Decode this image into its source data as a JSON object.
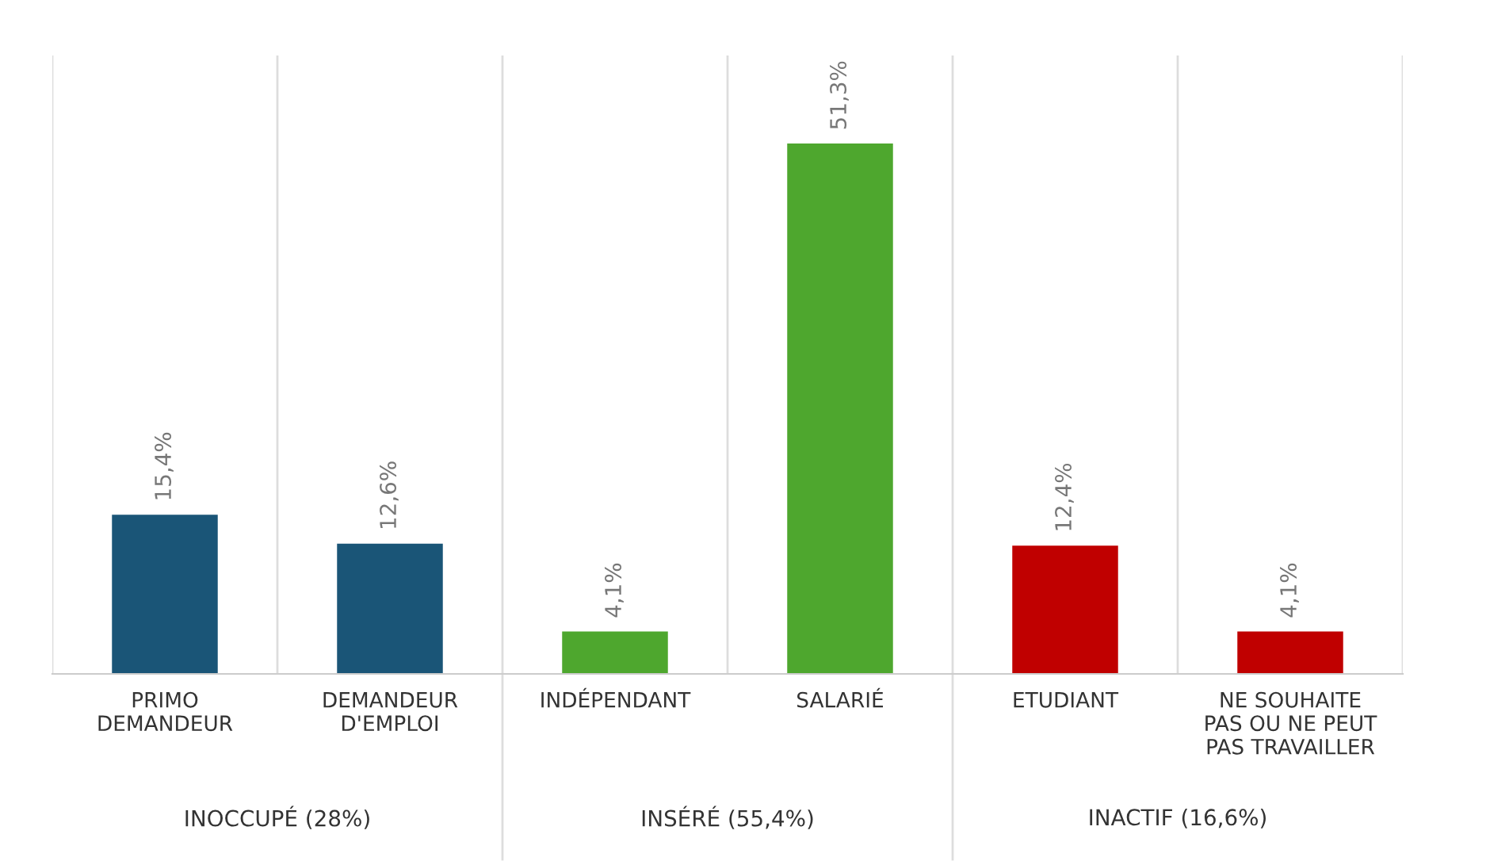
{
  "chart_data": {
    "type": "bar",
    "categories": [
      "PRIMO\nDEMANDEUR",
      "DEMANDEUR\nD'EMPLOI",
      "INDÉPENDANT",
      "SALARIÉ",
      "ETUDIANT",
      "NE SOUHAITE\nPAS OU NE PEUT\nPAS TRAVAILLER"
    ],
    "values": [
      15.4,
      12.6,
      4.1,
      51.3,
      12.4,
      4.1
    ],
    "colors": [
      "#1a5577",
      "#1a5577",
      "#4ea72e",
      "#4ea72e",
      "#c00000",
      "#c00000"
    ],
    "value_labels": [
      "15,4%",
      "12,6%",
      "4,1%",
      "51,3%",
      "12,4%",
      "4,1%"
    ],
    "annotations": [
      "INOCCUPÉ (28%)",
      "INSÉRÉ (55,4%)",
      "INACTIF (16,6%)"
    ],
    "grid": "x"
  }
}
